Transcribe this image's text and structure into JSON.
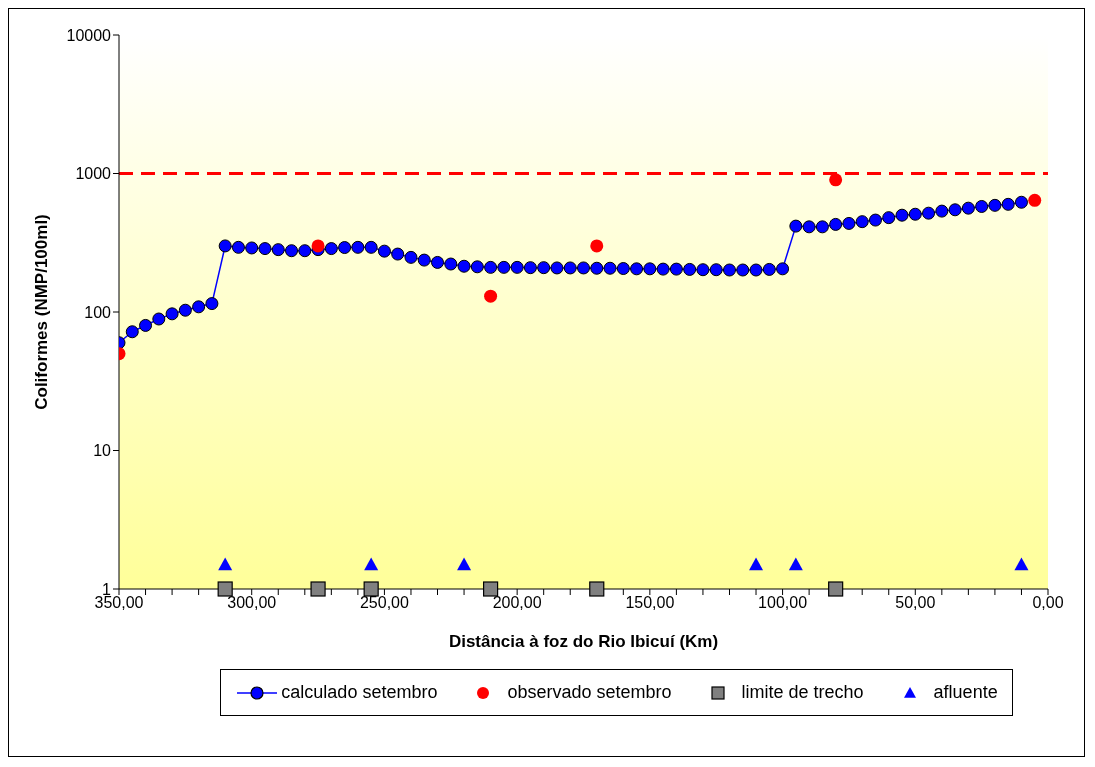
{
  "chart_data": {
    "type": "line",
    "xlabel": "Distância à foz do Rio Ibicuí (Km)",
    "ylabel": "Coliformes (NMP/100ml)",
    "xlim": [
      350,
      0
    ],
    "xticks": [
      {
        "value": 350,
        "label": "350,00"
      },
      {
        "value": 340,
        "label": null
      },
      {
        "value": 330,
        "label": null
      },
      {
        "value": 320,
        "label": null
      },
      {
        "value": 310,
        "label": null
      },
      {
        "value": 300,
        "label": "300,00"
      },
      {
        "value": 290,
        "label": null
      },
      {
        "value": 280,
        "label": null
      },
      {
        "value": 270,
        "label": null
      },
      {
        "value": 260,
        "label": null
      },
      {
        "value": 250,
        "label": "250,00"
      },
      {
        "value": 240,
        "label": null
      },
      {
        "value": 230,
        "label": null
      },
      {
        "value": 220,
        "label": null
      },
      {
        "value": 210,
        "label": null
      },
      {
        "value": 200,
        "label": "200,00"
      },
      {
        "value": 190,
        "label": null
      },
      {
        "value": 180,
        "label": null
      },
      {
        "value": 170,
        "label": null
      },
      {
        "value": 160,
        "label": null
      },
      {
        "value": 150,
        "label": "150,00"
      },
      {
        "value": 140,
        "label": null
      },
      {
        "value": 130,
        "label": null
      },
      {
        "value": 120,
        "label": null
      },
      {
        "value": 110,
        "label": null
      },
      {
        "value": 100,
        "label": "100,00"
      },
      {
        "value": 90,
        "label": null
      },
      {
        "value": 80,
        "label": null
      },
      {
        "value": 70,
        "label": null
      },
      {
        "value": 60,
        "label": null
      },
      {
        "value": 50,
        "label": "50,00"
      },
      {
        "value": 40,
        "label": null
      },
      {
        "value": 30,
        "label": null
      },
      {
        "value": 20,
        "label": null
      },
      {
        "value": 10,
        "label": null
      },
      {
        "value": 0,
        "label": "0,00"
      }
    ],
    "ylim": [
      1,
      10000
    ],
    "yticks": [
      1,
      10,
      100,
      1000,
      10000
    ],
    "log": "y",
    "grid": false,
    "legend": "bottom",
    "ref_lines": [
      {
        "axis": "y",
        "value": 1000,
        "color": "#ff0000",
        "line_style": "dashed"
      }
    ],
    "series": [
      {
        "name": "calculado setembro",
        "marker": "circle",
        "color": "#0000ff",
        "x": [
          350,
          345,
          340,
          335,
          330,
          325,
          320,
          315,
          310,
          305,
          300,
          295,
          290,
          285,
          280,
          275,
          270,
          265,
          260,
          255,
          250,
          245,
          240,
          235,
          230,
          225,
          220,
          215,
          210,
          205,
          200,
          195,
          190,
          185,
          180,
          175,
          170,
          165,
          160,
          155,
          150,
          145,
          140,
          135,
          130,
          125,
          120,
          115,
          110,
          105,
          100,
          95,
          90,
          85,
          80,
          75,
          70,
          65,
          60,
          55,
          50,
          45,
          40,
          35,
          30,
          25,
          20,
          15,
          10
        ],
        "values": [
          60,
          72,
          80,
          89,
          97,
          103,
          109,
          115,
          300,
          293,
          290,
          287,
          282,
          277,
          277,
          282,
          287,
          292,
          293,
          293,
          275,
          262,
          248,
          237,
          228,
          222,
          214,
          212,
          210,
          210,
          210,
          209,
          209,
          208,
          208,
          208,
          207,
          207,
          206,
          205,
          205,
          204,
          204,
          203,
          202,
          202,
          201,
          201,
          201,
          203,
          205,
          417,
          412,
          412,
          429,
          436,
          449,
          461,
          480,
          500,
          508,
          517,
          535,
          547,
          562,
          578,
          589,
          599,
          620
        ]
      },
      {
        "name": "observado setembro",
        "type": "scatter",
        "marker": "circle",
        "color": "#ff0000",
        "x": [
          350,
          275,
          210,
          170,
          80,
          5
        ],
        "values": [
          50,
          300,
          130,
          300,
          900,
          640
        ]
      },
      {
        "name": "limite de trecho",
        "type": "scatter",
        "marker": "square",
        "color": "#808080",
        "x": [
          310,
          275,
          255,
          210,
          170,
          80
        ],
        "values": [
          1,
          1,
          1,
          1,
          1,
          1
        ]
      },
      {
        "name": "afluente",
        "type": "scatter",
        "marker": "triangle",
        "color": "#0000ff",
        "x": [
          310,
          255,
          220,
          110,
          95,
          10
        ],
        "values": [
          1.5,
          1.5,
          1.5,
          1.5,
          1.5,
          1.5
        ]
      }
    ]
  }
}
